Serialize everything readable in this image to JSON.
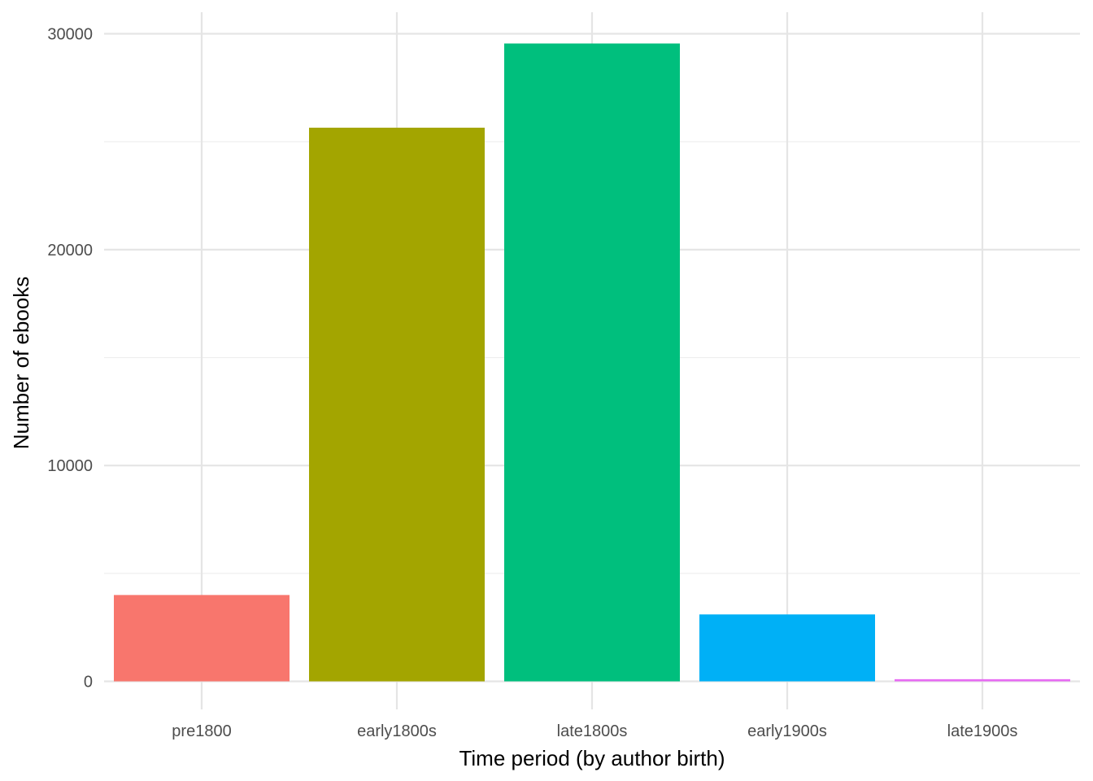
{
  "chart_data": {
    "type": "bar",
    "title": "",
    "xlabel": "Time period (by author birth)",
    "ylabel": "Number of ebooks",
    "categories": [
      "pre1800",
      "early1800s",
      "late1800s",
      "early1900s",
      "late1900s"
    ],
    "values": [
      4000,
      25650,
      29550,
      3100,
      100
    ],
    "colors": [
      "#F8766D",
      "#A3A500",
      "#00BF7D",
      "#00B0F6",
      "#E76BF3"
    ],
    "ylim": [
      -1300,
      31000
    ],
    "yticks": [
      0,
      10000,
      20000,
      30000
    ],
    "ytick_labels": [
      "0",
      "10000",
      "20000",
      "30000"
    ],
    "yminor_ticks": [
      5000,
      15000,
      25000
    ],
    "grid": true,
    "legend": "none"
  }
}
